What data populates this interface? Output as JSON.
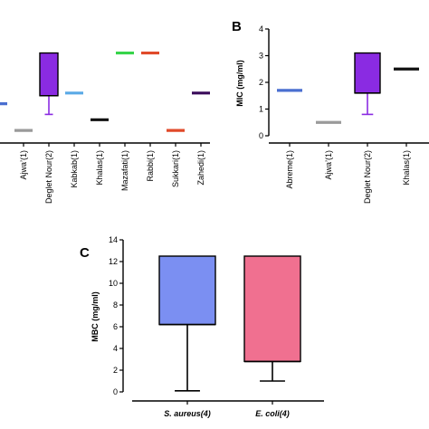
{
  "chart_data": [
    {
      "panel": "",
      "type": "box",
      "ylabel": "",
      "categories": [
        "",
        "Ajwa’(1)",
        "Deglet Nour(2)",
        "Kabkab(1)",
        "Khalas(1)",
        "Mazafati(1)",
        "Rabbi(1)",
        "Sukkari(1)",
        "Zahedi(1)"
      ],
      "colors": [
        "#4a6fd0",
        "#9a9a9a",
        "#8a2be2",
        "#5aa9e6",
        "#111111",
        "#36d44a",
        "#e04a2a",
        "#e04a2a",
        "#3a0a5a"
      ],
      "boxes": [
        {
          "median": 1.2
        },
        {
          "median": 0.2
        },
        {
          "min": 0.8,
          "q1": 1.5,
          "median": 1.5,
          "q3": 3.1,
          "max": 3.1
        },
        {
          "median": 1.6
        },
        {
          "median": 0.6
        },
        {
          "median": 3.1
        },
        {
          "median": 3.1
        },
        {
          "median": 0.2
        },
        {
          "median": 1.6
        }
      ],
      "ylim": [
        0,
        4
      ]
    },
    {
      "panel": "B",
      "type": "box",
      "ylabel": "MIC (mg/ml)",
      "yticks": [
        0,
        1,
        2,
        3,
        4
      ],
      "ylim": [
        0,
        4
      ],
      "categories": [
        "Abreme(1)",
        "Ajwa’(1)",
        "Deglet Nour(2)",
        "Khalas(1)"
      ],
      "colors": [
        "#4a6fd0",
        "#9a9a9a",
        "#8a2be2",
        "#111111"
      ],
      "boxes": [
        {
          "median": 1.7
        },
        {
          "median": 0.5
        },
        {
          "min": 0.8,
          "q1": 1.6,
          "median": 1.6,
          "q3": 3.1,
          "max": 3.1
        },
        {
          "median": 2.5
        }
      ]
    },
    {
      "panel": "C",
      "type": "box",
      "ylabel": "MBC (mg/ml)",
      "yticks": [
        0,
        2,
        4,
        6,
        8,
        10,
        12,
        14
      ],
      "ylim": [
        0,
        14
      ],
      "categories": [
        "S. aureus(4)",
        "E. coli(4)"
      ],
      "colors": [
        "#7b8ff2",
        "#f07090"
      ],
      "boxes": [
        {
          "min": 0.1,
          "q1": 6.2,
          "median": 6.2,
          "q3": 12.5,
          "max": 12.5
        },
        {
          "min": 1.0,
          "q1": 2.8,
          "median": 2.8,
          "q3": 12.5,
          "max": 12.5
        }
      ]
    }
  ]
}
